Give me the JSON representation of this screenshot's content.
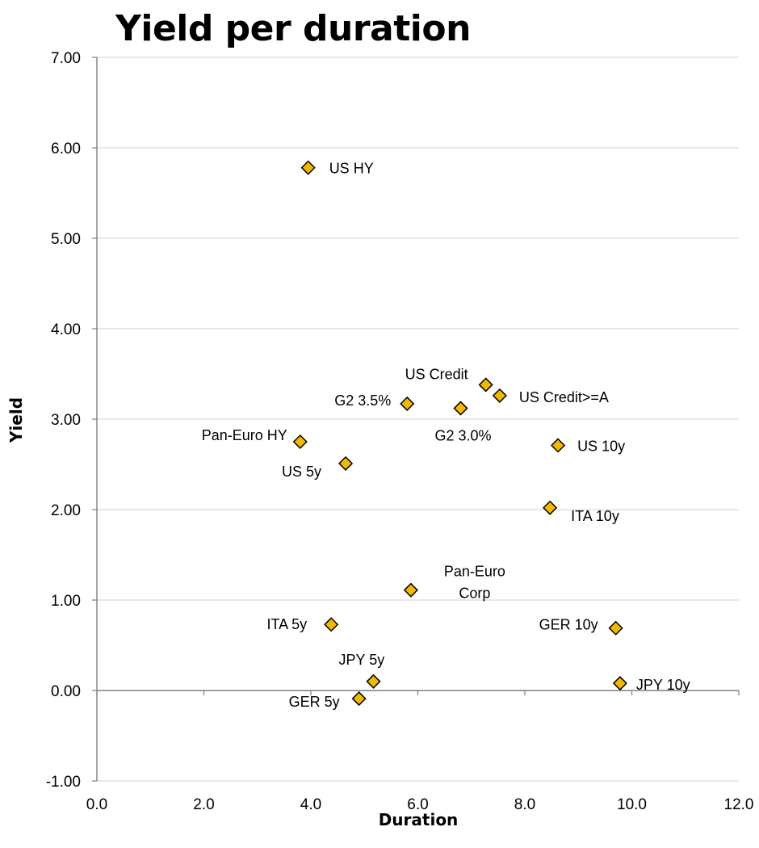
{
  "chart_data": {
    "type": "scatter",
    "title": "Yield per duration",
    "xlabel": "Duration",
    "ylabel": "Yield",
    "xlim": [
      0,
      12
    ],
    "ylim": [
      -1,
      7
    ],
    "x_ticks": [
      "0.0",
      "2.0",
      "4.0",
      "6.0",
      "8.0",
      "10.0",
      "12.0"
    ],
    "y_ticks": [
      "-1.00",
      "0.00",
      "1.00",
      "2.00",
      "3.00",
      "4.00",
      "5.00",
      "6.00",
      "7.00"
    ],
    "grid": "horizontal",
    "marker": "diamond",
    "marker_color": "#F5B800",
    "marker_edge_color": "#000000",
    "points": [
      {
        "label": "US HY",
        "x": 3.95,
        "y": 5.78
      },
      {
        "label": "US Credit",
        "x": 7.27,
        "y": 3.38
      },
      {
        "label": "US Credit>=A",
        "x": 7.53,
        "y": 3.26
      },
      {
        "label": "G2 3.5%",
        "x": 5.8,
        "y": 3.17
      },
      {
        "label": "G2 3.0%",
        "x": 6.8,
        "y": 3.12
      },
      {
        "label": "Pan-Euro HY",
        "x": 3.8,
        "y": 2.75
      },
      {
        "label": "US 10y",
        "x": 8.62,
        "y": 2.71
      },
      {
        "label": "US 5y",
        "x": 4.65,
        "y": 2.51
      },
      {
        "label": "ITA 10y",
        "x": 8.47,
        "y": 2.02
      },
      {
        "label": "Pan-Euro Corp",
        "label_lines": [
          "Pan-Euro",
          "Corp"
        ],
        "x": 5.87,
        "y": 1.11
      },
      {
        "label": "ITA 5y",
        "x": 4.38,
        "y": 0.73
      },
      {
        "label": "GER 10y",
        "x": 9.7,
        "y": 0.69
      },
      {
        "label": "JPY 5y",
        "x": 5.17,
        "y": 0.1
      },
      {
        "label": "JPY 10y",
        "x": 9.78,
        "y": 0.08
      },
      {
        "label": "GER 5y",
        "x": 4.9,
        "y": -0.09
      }
    ]
  }
}
